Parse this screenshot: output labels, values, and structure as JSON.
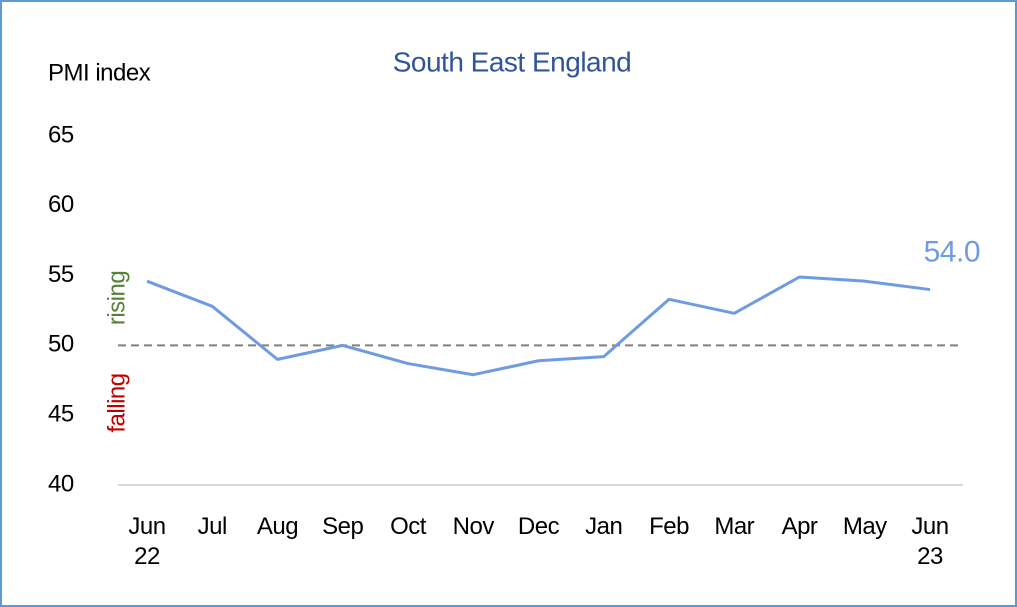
{
  "chart_data": {
    "type": "line",
    "title": "South East England",
    "y_label": "PMI index",
    "categories": [
      "Jun\n22",
      "Jul",
      "Aug",
      "Sep",
      "Oct",
      "Nov",
      "Dec",
      "Jan",
      "Feb",
      "Mar",
      "Apr",
      "May",
      "Jun\n23"
    ],
    "series": [
      {
        "name": "South East England",
        "color": "#6f9be0",
        "values": [
          54.6,
          52.8,
          49.0,
          50.0,
          48.7,
          47.9,
          48.9,
          49.2,
          53.3,
          52.3,
          54.9,
          54.6,
          54.0
        ],
        "value_labels": [
          null,
          null,
          null,
          null,
          null,
          null,
          null,
          null,
          null,
          null,
          null,
          null,
          "54.0"
        ]
      }
    ],
    "ylim": [
      40,
      65
    ],
    "yticks": [
      40,
      45,
      50,
      55,
      60,
      65
    ],
    "reference_line": 50,
    "annotations": {
      "above": "rising",
      "below": "falling"
    }
  }
}
